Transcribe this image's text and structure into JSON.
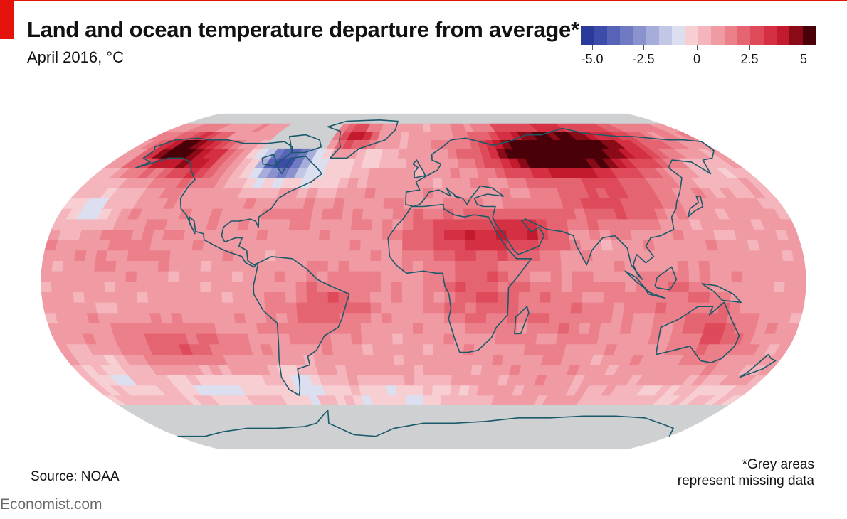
{
  "header": {
    "title": "Land and ocean temperature departure from average*",
    "subtitle": "April 2016, °C"
  },
  "legend": {
    "colors": [
      "#2a3a9a",
      "#3d4ca8",
      "#5663b6",
      "#6f7ac2",
      "#8b93cf",
      "#a7addb",
      "#c3c7e6",
      "#dcdff0",
      "#f7cfd3",
      "#f4b5bc",
      "#f09aa3",
      "#eb7f8a",
      "#e56471",
      "#de4a59",
      "#d42f42",
      "#c41a2e",
      "#8a0a18",
      "#4a0008"
    ],
    "ticks": [
      "-5.0",
      "-2.5",
      "0",
      "2.5",
      "5"
    ],
    "range": [
      -5.0,
      5.0
    ]
  },
  "map": {
    "projection": "Robinson",
    "variable": "Land and ocean temperature departure from average",
    "units": "°C",
    "period": "April 2016",
    "missing_color": "#cfd0d2",
    "coast_color": "#1a5a6b",
    "anomaly_regions": [
      {
        "region": "Alaska / NW Canada",
        "anomaly": 4.5
      },
      {
        "region": "Greenland",
        "anomaly": 3.0
      },
      {
        "region": "Hudson Bay / E Canada",
        "anomaly": -4.5
      },
      {
        "region": "Siberia / N Russia",
        "anomaly": 4.5
      },
      {
        "region": "Sahara / Arabia",
        "anomaly": 2.5
      },
      {
        "region": "Central Asia / China",
        "anomaly": 2.0
      },
      {
        "region": "Australia",
        "anomaly": 2.0
      },
      {
        "region": "South Pacific",
        "anomaly": 1.5
      },
      {
        "region": "N Pacific (west)",
        "anomaly": -1.5
      },
      {
        "region": "Southern Ocean",
        "anomaly": -1.0
      },
      {
        "region": "Patagonia",
        "anomaly": -1.5
      }
    ]
  },
  "footer": {
    "source": "Source: NOAA",
    "note_line1": "*Grey areas",
    "note_line2": "represent missing data",
    "brand": "Economist.com"
  }
}
